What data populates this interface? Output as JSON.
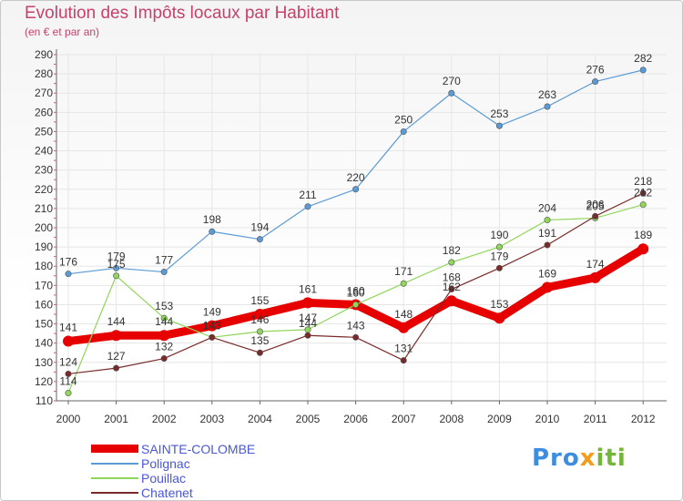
{
  "title": "Evolution des Impôts locaux par Habitant",
  "subtitle": "(en € et par an)",
  "logo": {
    "parts": [
      "Pro",
      "x",
      "iti"
    ],
    "colors": [
      "#3d8ee0",
      "#f39c1c",
      "#74b63a"
    ]
  },
  "colors": {
    "title": "#c8416b",
    "legend_text": "#4a57d6",
    "axis": "#666666",
    "grid": "#e6e6e6",
    "tick_mark": "#e0508a"
  },
  "chart_data": {
    "type": "line",
    "x": [
      "2000",
      "2001",
      "2002",
      "2003",
      "2004",
      "2005",
      "2006",
      "2007",
      "2008",
      "2009",
      "2010",
      "2011",
      "2012"
    ],
    "ylim": [
      110,
      290
    ],
    "yticks": [
      110,
      120,
      130,
      140,
      150,
      160,
      170,
      180,
      190,
      200,
      210,
      220,
      230,
      240,
      250,
      260,
      270,
      280,
      290
    ],
    "grid": true,
    "legend_position": "bottom-left",
    "series": [
      {
        "name": "SAINTE-COLOMBE",
        "color": "#e60000",
        "width": 9,
        "marker": 6,
        "values": [
          141,
          144,
          144,
          149,
          155,
          161,
          160,
          148,
          162,
          153,
          169,
          174,
          189
        ]
      },
      {
        "name": "Polignac",
        "color": "#5b9bd5",
        "width": 1.2,
        "marker": 3.2,
        "values": [
          176,
          179,
          177,
          198,
          194,
          211,
          220,
          250,
          270,
          253,
          263,
          276,
          282
        ]
      },
      {
        "name": "Pouillac",
        "color": "#8fd65a",
        "width": 1.2,
        "marker": 3.2,
        "values": [
          114,
          175,
          153,
          143,
          146,
          147,
          160,
          171,
          182,
          190,
          204,
          205,
          212
        ]
      },
      {
        "name": "Chatenet",
        "color": "#7a2a2a",
        "width": 1.2,
        "marker": 3.2,
        "values": [
          124,
          127,
          132,
          143,
          135,
          144,
          143,
          131,
          168,
          179,
          191,
          206,
          218
        ]
      }
    ],
    "label_order": [
      0,
      1,
      2,
      3
    ]
  }
}
